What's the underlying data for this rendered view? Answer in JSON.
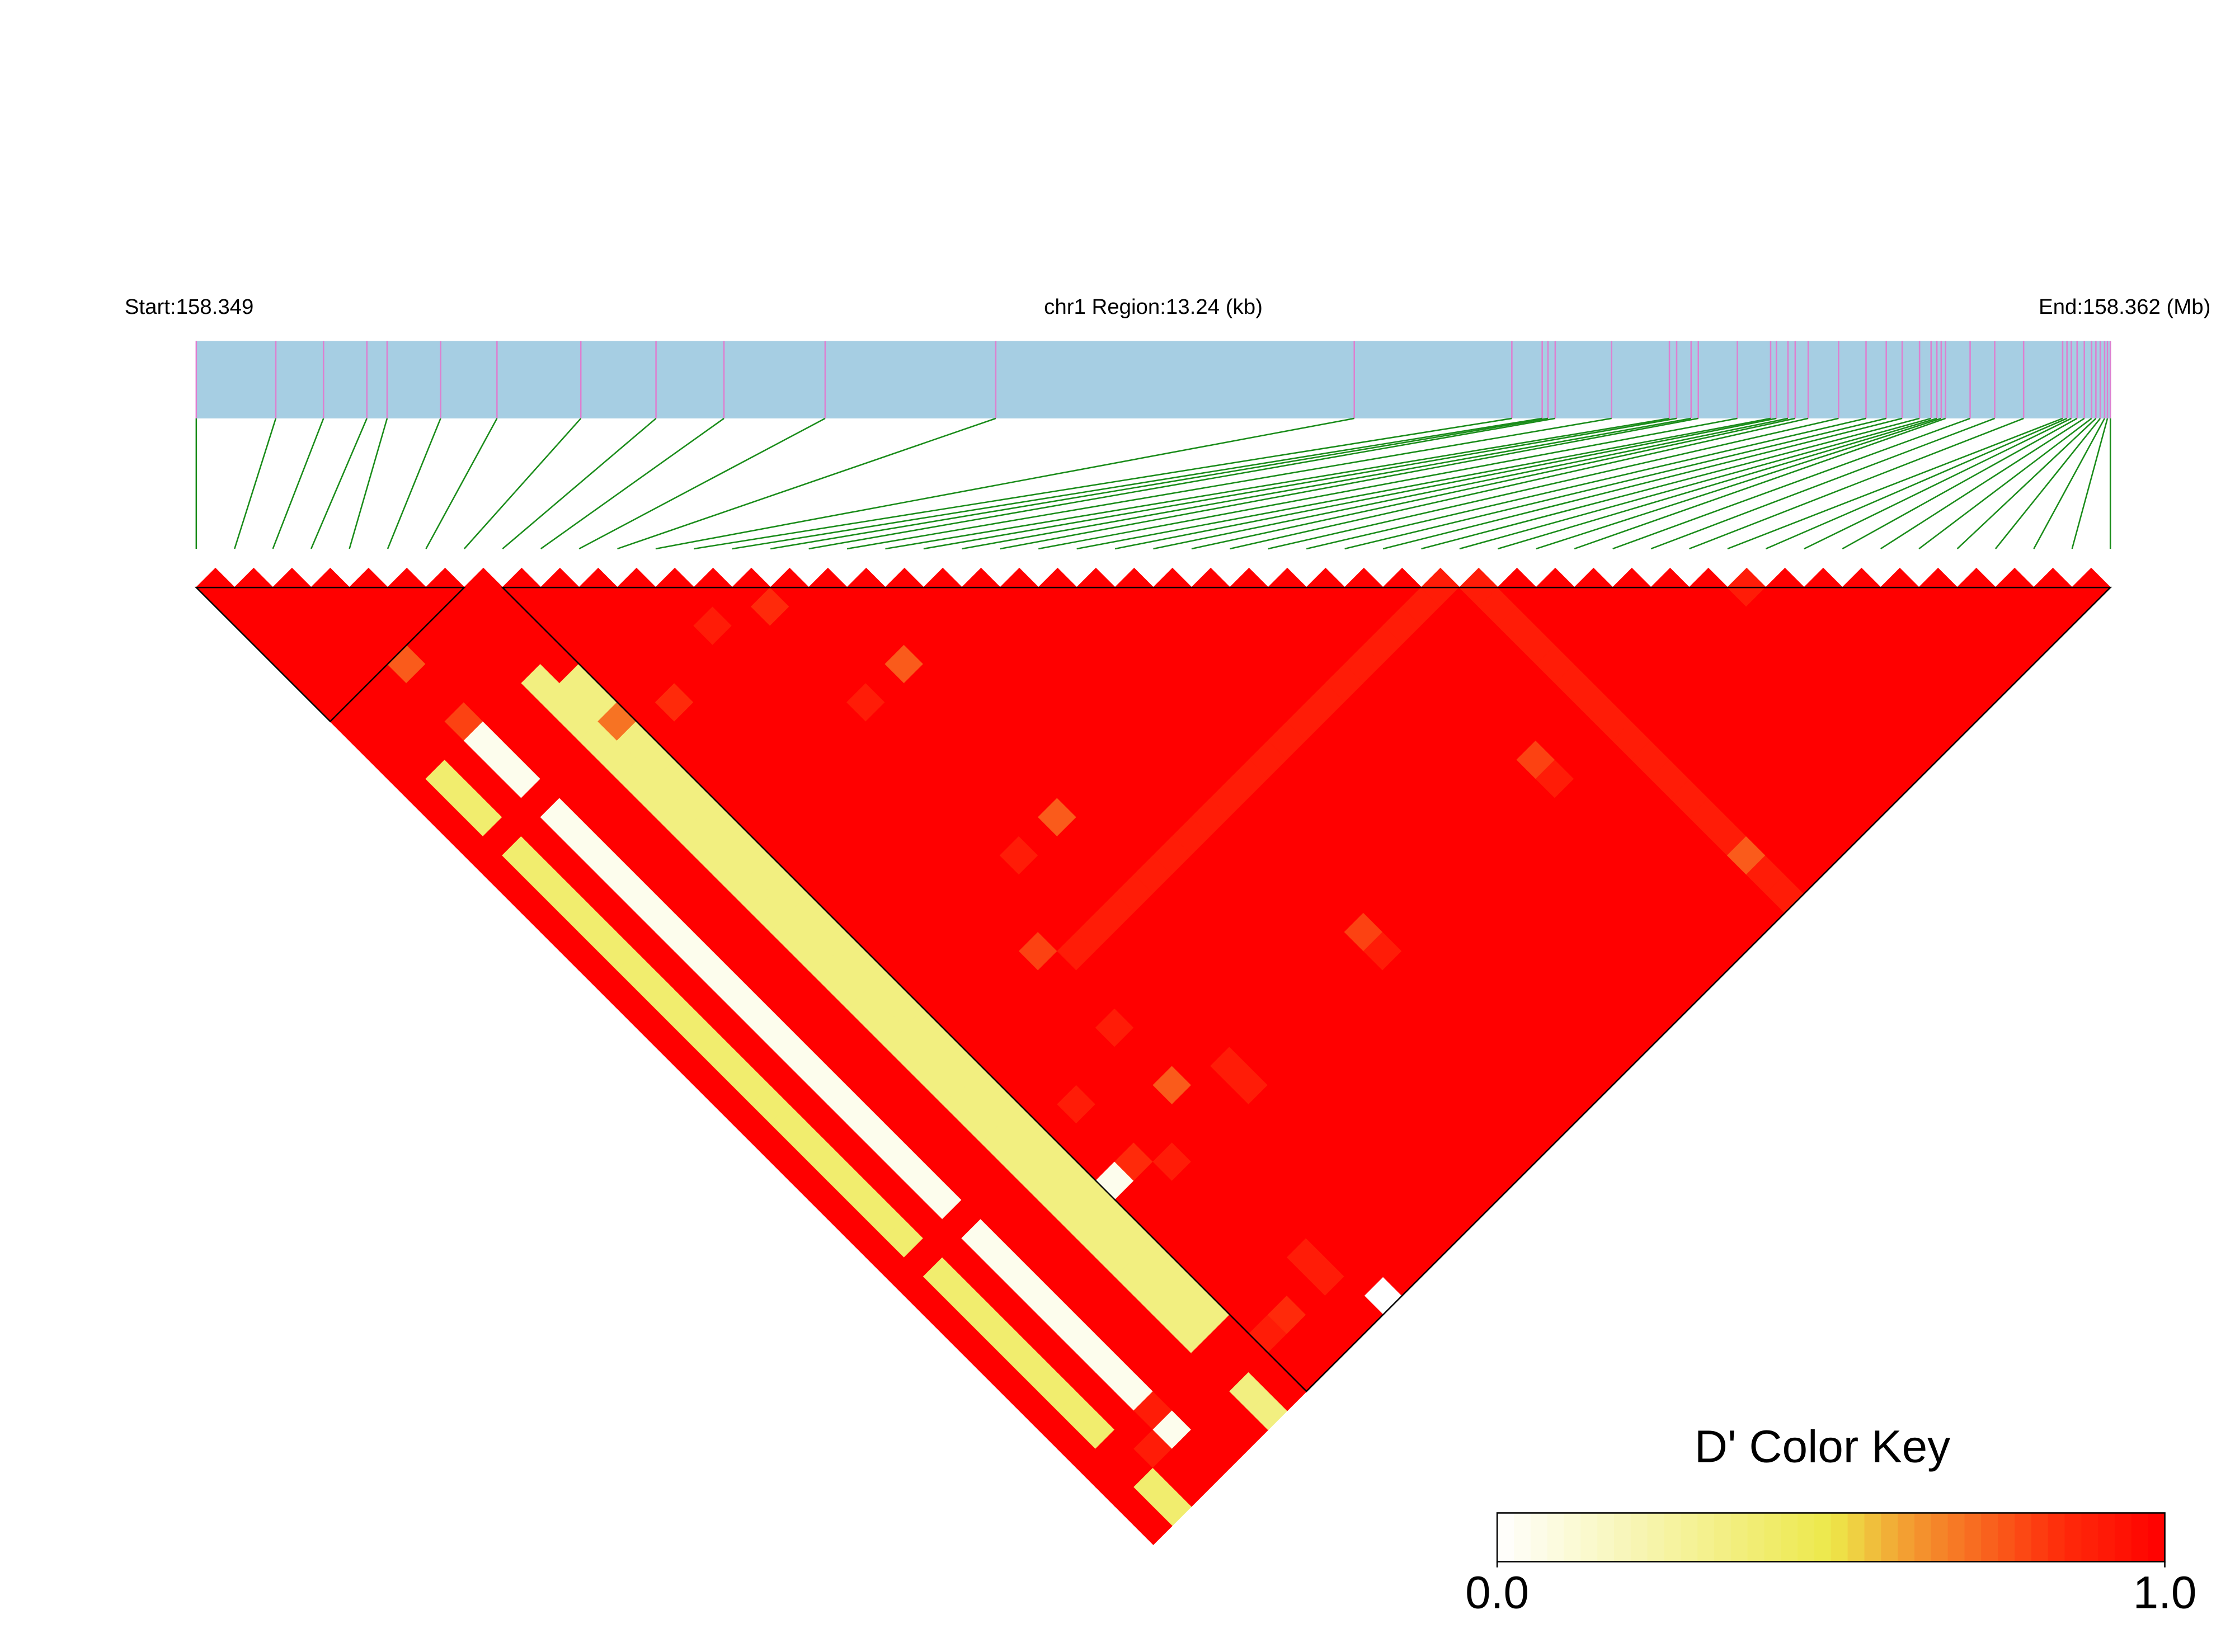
{
  "chart_data": {
    "type": "ld_heatmap",
    "start_label": "Start:158.349",
    "region_label": "chr1 Region:13.24 (kb)",
    "end_label": "End:158.362 (Mb)",
    "key_title": "D' Color Key",
    "key_lim": [
      0,
      1
    ],
    "key_ticks": [
      {
        "value": 0,
        "label": "0.0"
      },
      {
        "value": 1,
        "label": "1.0"
      }
    ],
    "color_stops": [
      {
        "value": 0,
        "color": "#ffffff"
      },
      {
        "value": 0.5,
        "color": "#ede84a"
      },
      {
        "value": 0.62,
        "color": "#f39a30"
      },
      {
        "value": 0.85,
        "color": "#ff2a0a"
      },
      {
        "value": 1,
        "color": "#ff0000"
      }
    ],
    "bar_color": "#a6cee3",
    "snp_line_color": "#dd80d0",
    "connector_color": "#1a8c1a",
    "xlim": [
      0,
      13.24
    ],
    "positions": [
      0,
      0.55,
      0.88,
      1.18,
      1.32,
      1.69,
      2.08,
      2.66,
      3.18,
      3.65,
      4.35,
      5.53,
      8.01,
      9.1,
      9.31,
      9.35,
      9.4,
      9.79,
      10.19,
      10.24,
      10.34,
      10.39,
      10.66,
      10.89,
      10.93,
      11.01,
      11.06,
      11.15,
      11.36,
      11.55,
      11.69,
      11.8,
      11.92,
      12.0,
      12.04,
      12.07,
      12.1,
      12.27,
      12.44,
      12.64,
      12.91,
      12.94,
      12.97,
      13.01,
      13.06,
      13.11,
      13.14,
      13.17,
      13.2,
      13.22,
      13.24
    ],
    "blocks": [
      [
        0,
        7
      ],
      [
        8,
        50
      ]
    ],
    "dprime": [
      [
        1,
        1,
        1,
        1,
        1,
        1,
        1,
        1,
        1,
        1,
        1,
        1,
        1,
        1,
        1,
        1,
        1,
        1,
        1,
        1,
        1,
        1,
        1,
        1,
        1,
        1,
        1,
        1,
        1,
        1,
        1,
        1,
        1,
        1,
        1,
        1,
        1,
        1,
        1,
        1,
        1,
        1,
        1,
        1,
        1,
        1,
        1,
        1,
        1,
        1
      ],
      [
        1,
        1,
        1,
        1,
        1,
        1,
        1,
        1,
        1,
        1,
        0.4,
        0.4,
        0.4,
        1,
        0.4,
        0.4,
        0.4,
        0.4,
        0.4,
        0.4,
        0.4,
        0.4,
        0.4,
        0.4,
        0.4,
        0.4,
        0.4,
        0.4,
        0.4,
        0.4,
        0.4,
        0.4,
        0.4,
        0.4,
        0.4,
        1,
        0.4,
        0.4,
        0.4,
        0.4,
        0.4,
        0.4,
        0.4,
        0.4,
        0.4,
        1,
        1,
        0.4,
        0.4
      ],
      [
        1,
        1,
        1,
        1,
        1,
        1,
        1,
        1,
        1,
        1,
        1,
        1,
        1,
        1,
        1,
        1,
        1,
        1,
        1,
        1,
        1,
        1,
        1,
        1,
        1,
        1,
        1,
        1,
        1,
        1,
        1,
        1,
        1,
        1,
        1,
        1,
        1,
        1,
        1,
        1,
        1,
        1,
        1,
        1,
        1,
        0.9,
        1,
        1
      ],
      [
        1,
        1,
        1,
        1,
        0.75,
        1,
        1,
        0.8,
        0.05,
        0.05,
        0.05,
        1,
        0.05,
        0.05,
        0.05,
        0.05,
        0.05,
        0.05,
        0.05,
        0.05,
        0.05,
        0.05,
        0.05,
        0.05,
        0.05,
        0.05,
        0.05,
        0.05,
        0.05,
        0.05,
        0.05,
        0.05,
        0.05,
        1,
        0.05,
        0.05,
        0.05,
        0.05,
        0.05,
        0.05,
        0.05,
        0.05,
        0.05,
        0.9,
        0.05,
        1,
        1
      ],
      [
        1,
        1,
        1,
        1,
        1,
        1,
        1,
        1,
        1,
        1,
        1,
        1,
        1,
        1,
        1,
        1,
        1,
        1,
        1,
        1,
        1,
        1,
        1,
        1,
        1,
        1,
        1,
        1,
        1,
        1,
        1,
        1,
        1,
        1,
        1,
        1,
        1,
        1,
        1,
        1,
        1,
        1,
        1,
        1,
        1,
        1
      ],
      [
        1,
        1,
        1,
        1,
        1,
        1,
        1,
        1,
        1,
        1,
        1,
        1,
        1,
        1,
        1,
        1,
        1,
        1,
        1,
        1,
        1,
        1,
        1,
        1,
        1,
        1,
        1,
        1,
        1,
        1,
        1,
        1,
        1,
        1,
        1,
        1,
        1,
        1,
        1,
        1,
        1,
        1,
        1,
        1,
        1
      ],
      [
        1,
        1,
        1,
        1,
        1,
        0.35,
        0.35,
        0.35,
        0.35,
        0.35,
        0.35,
        0.35,
        0.35,
        0.35,
        0.35,
        0.35,
        0.35,
        0.35,
        0.35,
        0.35,
        0.35,
        0.35,
        0.35,
        0.35,
        0.35,
        0.35,
        0.35,
        0.35,
        0.35,
        0.35,
        0.35,
        0.35,
        0.35,
        0.35,
        0.35,
        0.35,
        0.35,
        0.35,
        0.35,
        0.35,
        1,
        1,
        0.35,
        0.35
      ],
      [
        1,
        1,
        1,
        1,
        1,
        0.35,
        0.35,
        0.7,
        0.35,
        0.35,
        0.35,
        0.35,
        0.35,
        0.35,
        0.35,
        0.35,
        0.35,
        0.35,
        0.35,
        0.35,
        0.35,
        0.35,
        0.35,
        0.35,
        0.35,
        0.35,
        0.35,
        0.35,
        0.35,
        0.35,
        0.35,
        0.35,
        0.35,
        0.35,
        0.35,
        0.35,
        0.35,
        0.35,
        0.35,
        1,
        1,
        1,
        1
      ],
      [
        1,
        1,
        1,
        1,
        1,
        1,
        1,
        1,
        1,
        1,
        1,
        1,
        1,
        1,
        1,
        1,
        1,
        1,
        1,
        1,
        1,
        1,
        1,
        1,
        1,
        1,
        1,
        1,
        1,
        1,
        1,
        0.05,
        1,
        1,
        1,
        1,
        1,
        1,
        1,
        0.9,
        1,
        1
      ],
      [
        1,
        1,
        1,
        1,
        1,
        1,
        0.85,
        1,
        1,
        1,
        1,
        1,
        1,
        1,
        1,
        1,
        1,
        1,
        1,
        1,
        1,
        1,
        1,
        1,
        1,
        1,
        1,
        0.9,
        1,
        1,
        0.85,
        1,
        1,
        1,
        1,
        1,
        1,
        1,
        0.85,
        1,
        1
      ],
      [
        1,
        1,
        1,
        1,
        1,
        1,
        1,
        1,
        1,
        1,
        1,
        1,
        1,
        1,
        1,
        1,
        1,
        1,
        1,
        1,
        1,
        1,
        1,
        1,
        1,
        1,
        1,
        1,
        1,
        1,
        0.9,
        1,
        1,
        1,
        1,
        1,
        1,
        1,
        1,
        1
      ],
      [
        1,
        1,
        1,
        1,
        1,
        1,
        1,
        1,
        1,
        1,
        1,
        1,
        1,
        1,
        1,
        1,
        1,
        1,
        1,
        1,
        1,
        1,
        1,
        1,
        1,
        1,
        1,
        1,
        1,
        1,
        1,
        1,
        1,
        1,
        1,
        0.9,
        0.9,
        1,
        1
      ],
      [
        1,
        1,
        0.9,
        1,
        1,
        1,
        1,
        1,
        1,
        1,
        1,
        1,
        1,
        1,
        1,
        1,
        1,
        1,
        1,
        0.8,
        1,
        1,
        1,
        0.9,
        1,
        1,
        0.75,
        1,
        1,
        1,
        1,
        1,
        1,
        1,
        1,
        1,
        1
      ],
      [
        1,
        1,
        1,
        1,
        1,
        1,
        1,
        1,
        1,
        1,
        1,
        1,
        1,
        1,
        1,
        1,
        1,
        1,
        1,
        0.9,
        1,
        1,
        1,
        1,
        1,
        1,
        1,
        1,
        1,
        1,
        1,
        1,
        1,
        1,
        1,
        1,
        1
      ],
      [
        1,
        0.85,
        1,
        1,
        1,
        1,
        0.9,
        1,
        1,
        1,
        1,
        1,
        1,
        1,
        0.9,
        1,
        1,
        1,
        0.9,
        1,
        1,
        1,
        1,
        1,
        1,
        0.9,
        0.9,
        1,
        1,
        1,
        1,
        1,
        1,
        1,
        1,
        1
      ],
      [
        1,
        1,
        1,
        1,
        1,
        1,
        1,
        1,
        1,
        1,
        1,
        1,
        1,
        1,
        1,
        1,
        1,
        0.9,
        1,
        1,
        1,
        1,
        1,
        1,
        1,
        1,
        1,
        1,
        1,
        1,
        1,
        1,
        1,
        1,
        1
      ],
      [
        1,
        1,
        1,
        1,
        0.75,
        1,
        1,
        1,
        1,
        1,
        1,
        1,
        0.75,
        1,
        1,
        1,
        0.9,
        1,
        1,
        1,
        1,
        1,
        1,
        1,
        1,
        1,
        1,
        1,
        1,
        1,
        1,
        1,
        1,
        1
      ],
      [
        1,
        1,
        1,
        1,
        1,
        1,
        1,
        1,
        1,
        1,
        1,
        1,
        1,
        1,
        1,
        0.9,
        1,
        1,
        1,
        1,
        1,
        1,
        1,
        1,
        1,
        1,
        1,
        1,
        1,
        1,
        1,
        1,
        1
      ],
      [
        1,
        1,
        1,
        1,
        1,
        1,
        1,
        1,
        1,
        1,
        1,
        1,
        1,
        1,
        0.9,
        1,
        1,
        1,
        1,
        1,
        1,
        1,
        1,
        1,
        1,
        1,
        1,
        1,
        1,
        1,
        1,
        1
      ],
      [
        1,
        1,
        1,
        1,
        1,
        1,
        1,
        1,
        1,
        1,
        1,
        1,
        1,
        0.9,
        1,
        1,
        1,
        1,
        1,
        1,
        1,
        1,
        1,
        1,
        1,
        1,
        1,
        1,
        1,
        1,
        1
      ],
      [
        1,
        1,
        1,
        1,
        1,
        1,
        1,
        1,
        1,
        1,
        1,
        1,
        0.9,
        1,
        1,
        1,
        1,
        1,
        1,
        1,
        1,
        1,
        1,
        1,
        1,
        1,
        1,
        1,
        1,
        1
      ],
      [
        1,
        1,
        1,
        1,
        1,
        1,
        1,
        1,
        1,
        1,
        1,
        0.9,
        1,
        1,
        1,
        1,
        1,
        1,
        0.8,
        0.9,
        1,
        1,
        1,
        1,
        1,
        1,
        1,
        1,
        1
      ],
      [
        1,
        1,
        1,
        1,
        1,
        1,
        1,
        1,
        1,
        1,
        0.9,
        1,
        1,
        1,
        1,
        1,
        1,
        1,
        1,
        1,
        1,
        1,
        1,
        1,
        1,
        1,
        1,
        1
      ],
      [
        1,
        1,
        1,
        1,
        1,
        1,
        1,
        1,
        1,
        0.9,
        1,
        1,
        1,
        1,
        1,
        1,
        1,
        1,
        1,
        1,
        1,
        1,
        1,
        1,
        1,
        1,
        1
      ],
      [
        1,
        1,
        1,
        1,
        1,
        1,
        1,
        1,
        0.9,
        1,
        1,
        1,
        1,
        1,
        1,
        1,
        1,
        1,
        1,
        1,
        1,
        1,
        1,
        1,
        1,
        1
      ],
      [
        1,
        1,
        1,
        1,
        1,
        1,
        1,
        0.9,
        1,
        1,
        1,
        1,
        1,
        1,
        1,
        1,
        1,
        1,
        1,
        1,
        1,
        1,
        1,
        1,
        1
      ],
      [
        1,
        1,
        1,
        1,
        1,
        1,
        0.9,
        1,
        1,
        1,
        1,
        1,
        1,
        1,
        1,
        1,
        1,
        1,
        1,
        1,
        1,
        1,
        1,
        1
      ],
      [
        1,
        1,
        1,
        1,
        1,
        0.9,
        1,
        1,
        1,
        1,
        1,
        1,
        1,
        1,
        1,
        1,
        1,
        1,
        1,
        1,
        1,
        1,
        1
      ],
      [
        1,
        1,
        1,
        1,
        0.9,
        1,
        1,
        1,
        1,
        1,
        1,
        1,
        1,
        1,
        1,
        1,
        1,
        1,
        1,
        1,
        1,
        1
      ],
      [
        1,
        1,
        1,
        0.9,
        1,
        1,
        1,
        1,
        1,
        1,
        1,
        1,
        1,
        1,
        1,
        1,
        1,
        1,
        1,
        1,
        1
      ],
      [
        1,
        1,
        0.9,
        1,
        1,
        1,
        1,
        1,
        1,
        0.8,
        0.9,
        1,
        1,
        1,
        1,
        1,
        1,
        1,
        1,
        1
      ],
      [
        1,
        0.9,
        1,
        1,
        1,
        1,
        1,
        1,
        1,
        1,
        1,
        1,
        1,
        1,
        1,
        1,
        1,
        1,
        1
      ],
      [
        0.9,
        1,
        1,
        1,
        1,
        1,
        1,
        1,
        1,
        1,
        1,
        1,
        1,
        1,
        1,
        1,
        1,
        1
      ],
      [
        0.9,
        0.9,
        0.9,
        0.9,
        0.9,
        0.9,
        0.9,
        0.9,
        0.9,
        0.9,
        0.9,
        0.9,
        0.9,
        0.9,
        0.75,
        0.9,
        0.9
      ],
      [
        1,
        1,
        1,
        1,
        1,
        1,
        1,
        1,
        1,
        1,
        1,
        1,
        1,
        1,
        1,
        1
      ],
      [
        1,
        1,
        1,
        1,
        1,
        1,
        1,
        1,
        1,
        1,
        1,
        1,
        1,
        1,
        1
      ],
      [
        1,
        1,
        1,
        1,
        1,
        1,
        1,
        1,
        1,
        1,
        1,
        1,
        1,
        1
      ],
      [
        1,
        1,
        1,
        1,
        1,
        1,
        1,
        1,
        1,
        1,
        1,
        1,
        1
      ],
      [
        1,
        1,
        1,
        1,
        1,
        1,
        1,
        1,
        1,
        1,
        1,
        1
      ],
      [
        1,
        1,
        1,
        1,
        1,
        1,
        1,
        1,
        1,
        1,
        1
      ],
      [
        0.9,
        1,
        1,
        1,
        1,
        1,
        1,
        1,
        1,
        1
      ],
      [
        1,
        1,
        1,
        1,
        1,
        1,
        1,
        1,
        1
      ],
      [
        1,
        1,
        1,
        1,
        1,
        1,
        1,
        1
      ],
      [
        1,
        1,
        1,
        1,
        1,
        1,
        1
      ],
      [
        1,
        1,
        1,
        1,
        1,
        1
      ],
      [
        1,
        1,
        1,
        1,
        1
      ],
      [
        1,
        1,
        1,
        1
      ],
      [
        1,
        1,
        1
      ],
      [
        1,
        1
      ],
      [
        1
      ]
    ]
  }
}
